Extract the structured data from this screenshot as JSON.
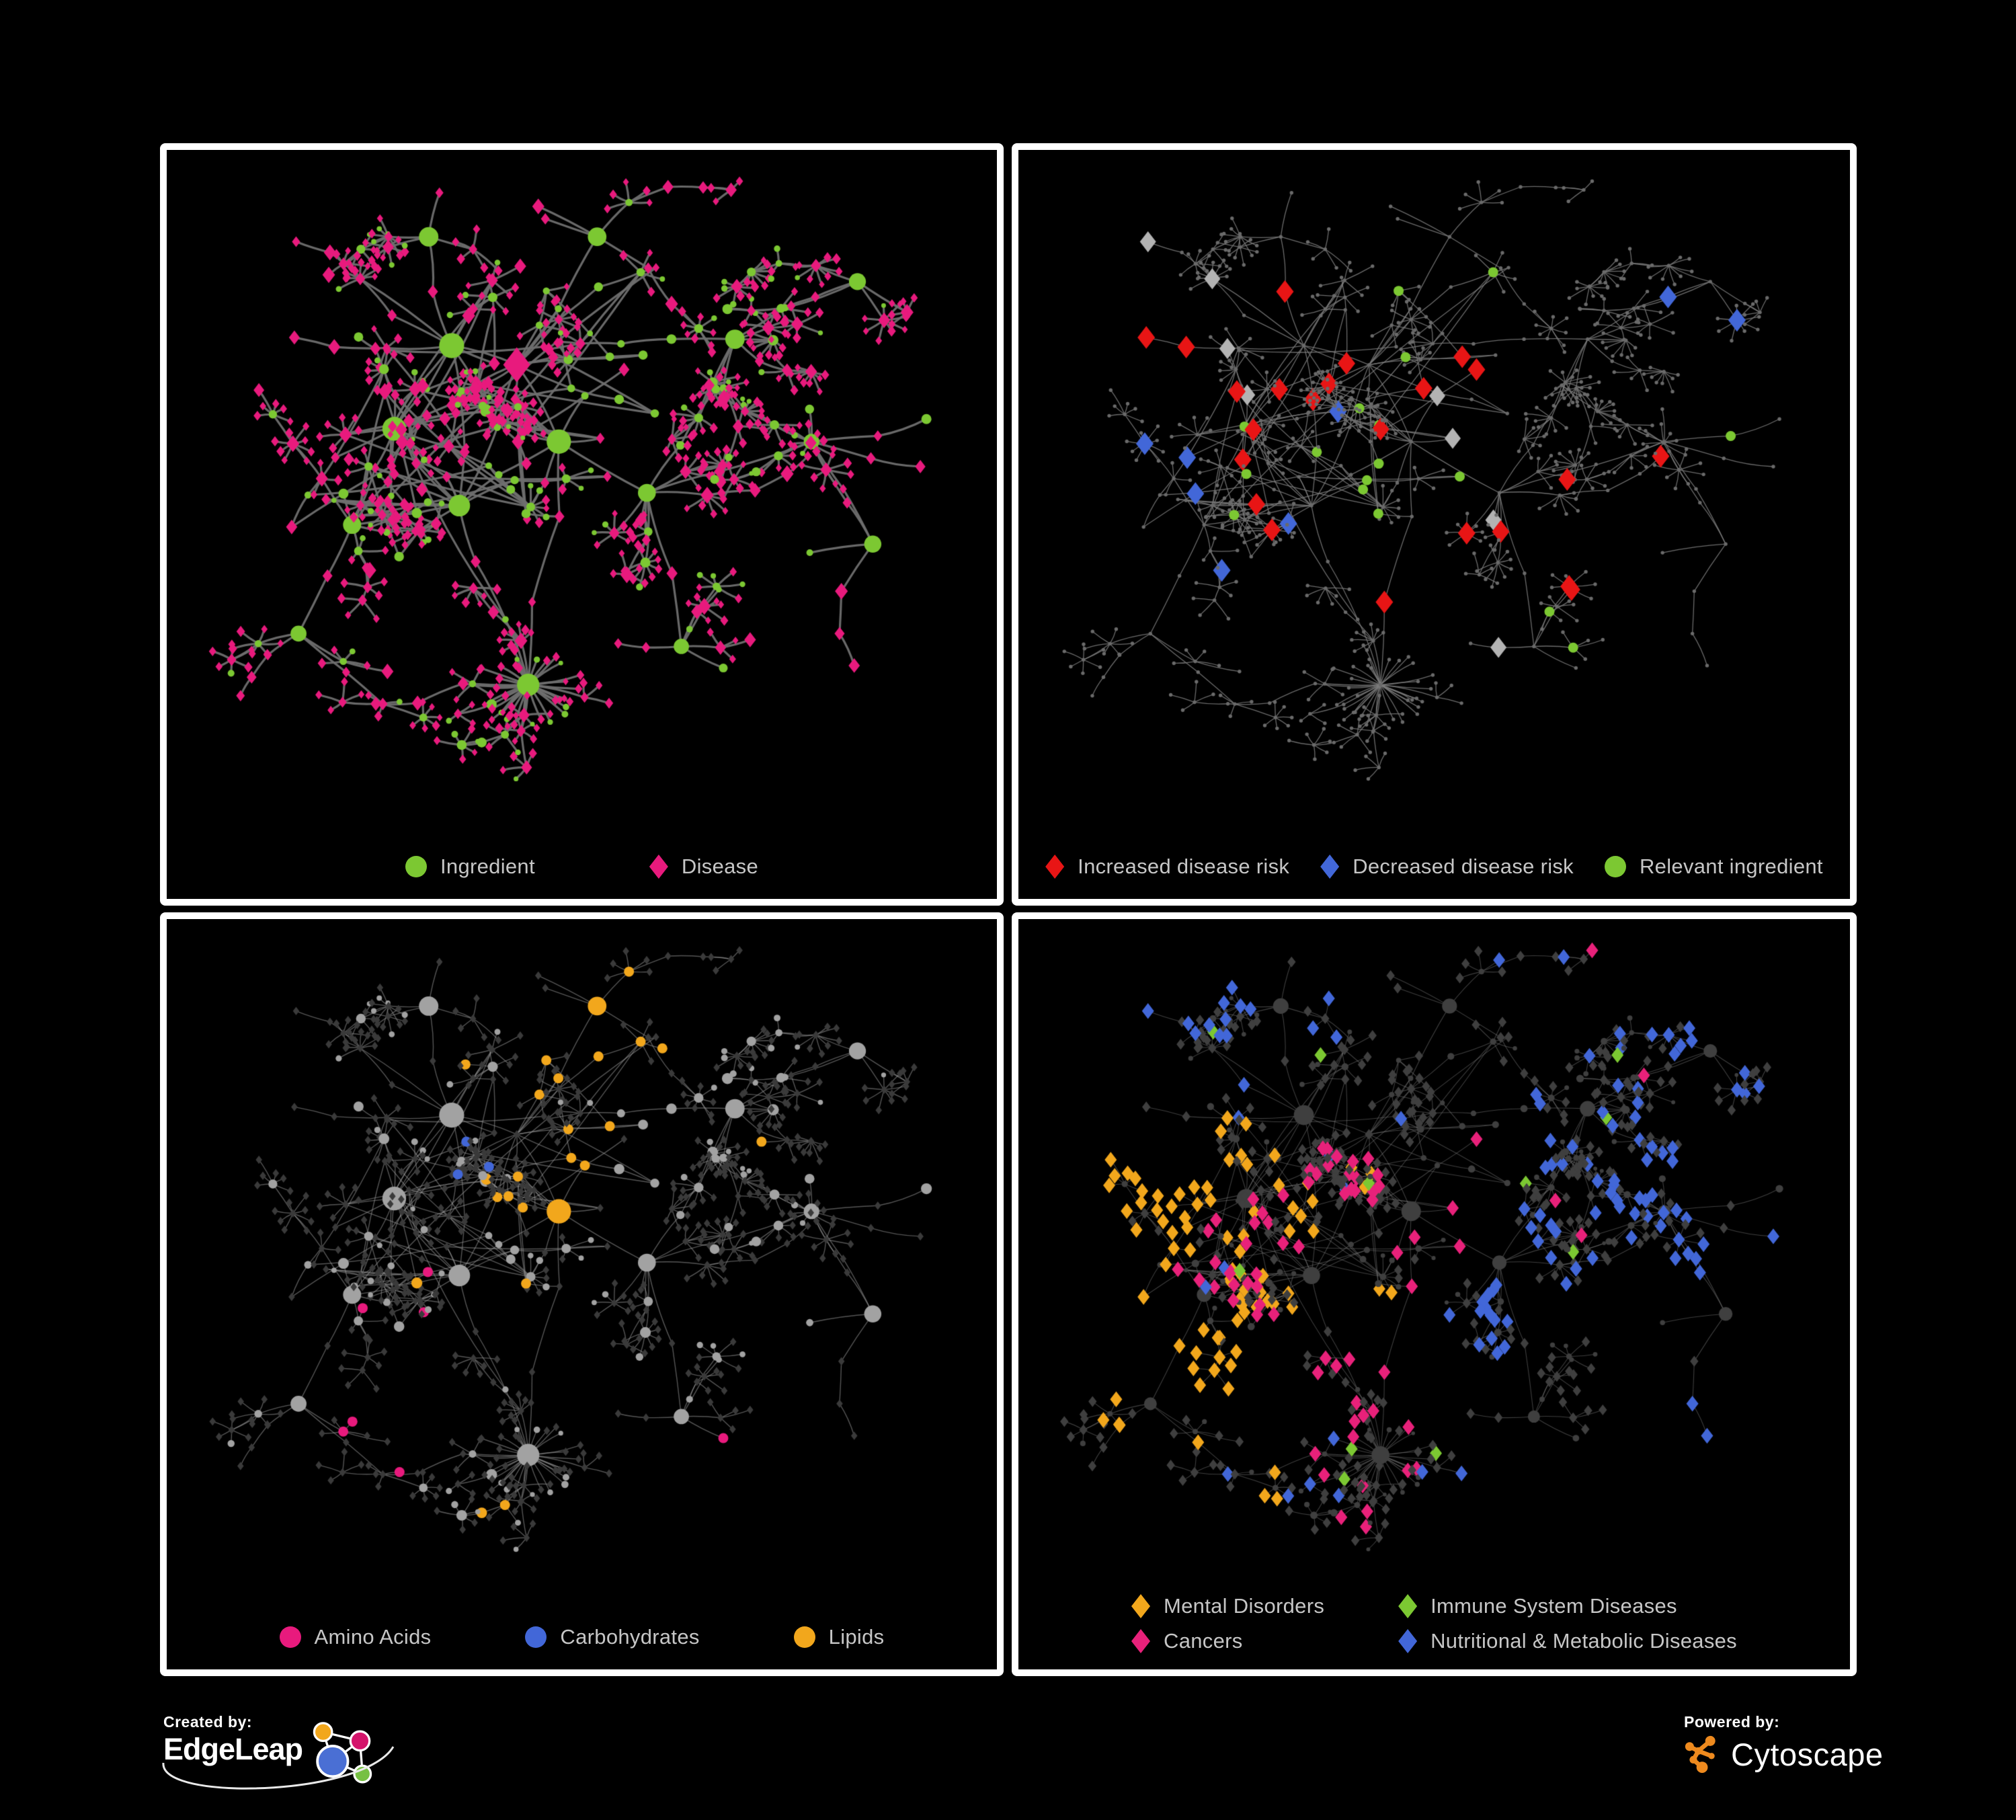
{
  "poster": {
    "background": "#000000",
    "panel_border": "#ffffff"
  },
  "panels": [
    {
      "name": "ingredient-disease-network",
      "legend": [
        {
          "shape": "circle",
          "color": "#7cc832",
          "label": "Ingredient"
        },
        {
          "shape": "diamond",
          "color": "#e81a7d",
          "label": "Disease"
        }
      ],
      "style": {
        "edge": "#6f6f6f",
        "ingredient": "#7cc832",
        "disease": "#e81a7d"
      }
    },
    {
      "name": "disease-risk-network",
      "legend": [
        {
          "shape": "diamond",
          "color": "#e81515",
          "label": "Increased disease risk"
        },
        {
          "shape": "diamond",
          "color": "#4267d8",
          "label": "Decreased disease risk"
        },
        {
          "shape": "circle",
          "color": "#7cc832",
          "label": "Relevant ingredient"
        }
      ],
      "style": {
        "edge": "#7e7e7e",
        "default_node": "#6a6a6a",
        "increased": "#e81515",
        "decreased": "#4267d8",
        "neutral": "#b3b3b3",
        "relevant": "#7cc832"
      }
    },
    {
      "name": "nutrient-class-network",
      "legend": [
        {
          "shape": "circle",
          "color": "#e81a7d",
          "label": "Amino Acids"
        },
        {
          "shape": "circle",
          "color": "#4267d8",
          "label": "Carbohydrates"
        },
        {
          "shape": "circle",
          "color": "#f2a71c",
          "label": "Lipids"
        }
      ],
      "style": {
        "edge": "#9a9a9a",
        "ingredient": "#a2a2a2",
        "disease": "#3a3a3a",
        "amino": "#e81a7d",
        "carbs": "#4267d8",
        "lipids": "#f2a71c"
      }
    },
    {
      "name": "disease-class-network",
      "legend": [
        {
          "shape": "diamond",
          "color": "#f2a71c",
          "label": "Mental Disorders"
        },
        {
          "shape": "diamond",
          "color": "#7cc832",
          "label": "Immune System Diseases"
        },
        {
          "shape": "diamond",
          "color": "#e8217a",
          "label": "Cancers"
        },
        {
          "shape": "diamond",
          "color": "#4267d8",
          "label": "Nutritional & Metabolic Diseases"
        }
      ],
      "style": {
        "edge": "#8a8a8a",
        "default_node": "#3f3f3f",
        "mental": "#f2a71c",
        "immune": "#7cc832",
        "cancers": "#e8217a",
        "nutritional": "#4267d8"
      }
    }
  ],
  "footer": {
    "created_by": "Created by:",
    "created_brand": "EdgeLeap",
    "powered_by": "Powered by:",
    "powered_brand": "Cytoscape",
    "edgeleap_colors": {
      "blue": "#4a6fd4",
      "orange": "#f2a71c",
      "pink": "#d4146b",
      "green": "#76c043"
    },
    "cytoscape_orange": "#ee8a1e"
  }
}
